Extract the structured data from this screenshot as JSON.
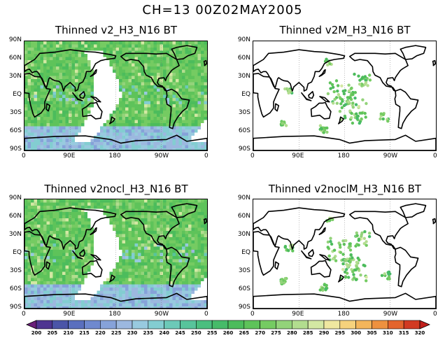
{
  "title": "CH=13    00Z02MAY2005",
  "panels": [
    {
      "title": "Thinned v2_H3_N16 BT",
      "kind": "swath"
    },
    {
      "title": "Thinned v2M_H3_N16 BT",
      "kind": "dots"
    },
    {
      "title": "Thinned v2nocl_H3_N16 BT",
      "kind": "swath"
    },
    {
      "title": "Thinned v2noclM_H3_N16 BT",
      "kind": "dots"
    }
  ],
  "lat_labels": [
    "90N",
    "60N",
    "30N",
    "EQ",
    "30S",
    "60S",
    "90S"
  ],
  "lon_labels_top": [
    "0",
    "90E",
    "180",
    "90W",
    "0"
  ],
  "lon_labels_bottom_left": [
    "0",
    "90E",
    "180",
    "90W",
    "0"
  ],
  "lon_labels_bottom_right": [
    "0",
    "90E",
    "180",
    "90W",
    "0"
  ],
  "colorbar": {
    "labels": [
      "200",
      "205",
      "210",
      "215",
      "220",
      "225",
      "230",
      "235",
      "240",
      "245",
      "250",
      "255",
      "260",
      "265",
      "270",
      "275",
      "280",
      "285",
      "290",
      "295",
      "300",
      "305",
      "310",
      "315",
      "320"
    ],
    "colors": [
      "#6a1f7a",
      "#4e3591",
      "#4b55a8",
      "#5a6fbe",
      "#6f89cf",
      "#86a2d9",
      "#9cb8df",
      "#98cadf",
      "#83cdd1",
      "#6cc9b8",
      "#58c49b",
      "#4bbf7f",
      "#46bb69",
      "#4cbc5c",
      "#5ec35a",
      "#75cb62",
      "#93d37a",
      "#b2dd8f",
      "#d3e8a3",
      "#efe7a0",
      "#f6d27d",
      "#f3b55b",
      "#ee913f",
      "#e3642d",
      "#d13a22",
      "#c01f1b"
    ]
  }
}
